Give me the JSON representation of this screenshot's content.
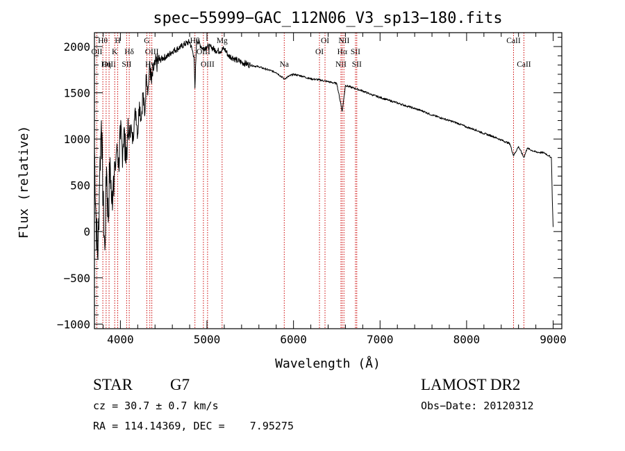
{
  "chart_data": {
    "type": "line",
    "title": "spec−55999−GAC_112N06_V3_sp13−180.fits",
    "xlabel": "Wavelength (Å)",
    "ylabel": "Flux (relative)",
    "xlim": [
      3700,
      9100
    ],
    "ylim": [
      -1050,
      2150
    ],
    "x_ticks": [
      4000,
      5000,
      6000,
      7000,
      8000,
      9000
    ],
    "x_tick_labels": [
      "4000",
      "5000",
      "6000",
      "7000",
      "8000",
      "9000"
    ],
    "y_ticks": [
      -1000,
      -500,
      0,
      500,
      1000,
      1500,
      2000
    ],
    "y_tick_labels": [
      "−1000",
      "−500",
      "0",
      "500",
      "1000",
      "1500",
      "2000"
    ],
    "grid": false,
    "series": [
      {
        "line_color": "#000000",
        "x": [
          3700,
          3720,
          3740,
          3760,
          3780,
          3800,
          3820,
          3840,
          3860,
          3880,
          3900,
          3920,
          3940,
          3960,
          3980,
          4000,
          4020,
          4040,
          4060,
          4080,
          4100,
          4120,
          4140,
          4160,
          4180,
          4200,
          4220,
          4240,
          4260,
          4280,
          4300,
          4320,
          4340,
          4360,
          4380,
          4400,
          4450,
          4500,
          4550,
          4600,
          4650,
          4700,
          4750,
          4800,
          4850,
          4861,
          4880,
          4900,
          4950,
          5000,
          5050,
          5100,
          5150,
          5200,
          5250,
          5300,
          5350,
          5400,
          5500,
          5600,
          5700,
          5800,
          5893,
          5950,
          6000,
          6100,
          6200,
          6300,
          6400,
          6500,
          6563,
          6600,
          6700,
          6800,
          6900,
          7000,
          7100,
          7200,
          7300,
          7400,
          7500,
          7600,
          7700,
          7800,
          7900,
          8000,
          8100,
          8200,
          8300,
          8400,
          8500,
          8542,
          8600,
          8662,
          8700,
          8800,
          8900,
          8950,
          8980,
          8990,
          9000
        ],
        "y": [
          900,
          100,
          -300,
          600,
          1200,
          300,
          -200,
          700,
          100,
          800,
          300,
          600,
          700,
          950,
          800,
          1000,
          900,
          1100,
          750,
          1050,
          1000,
          1150,
          950,
          1200,
          1300,
          1050,
          1400,
          1200,
          1500,
          1250,
          1700,
          1550,
          1800,
          1600,
          1750,
          1800,
          1850,
          1880,
          1900,
          1950,
          1970,
          2000,
          2030,
          2050,
          1900,
          1550,
          2080,
          2050,
          1980,
          2000,
          1990,
          1960,
          1950,
          1980,
          1900,
          1880,
          1850,
          1830,
          1800,
          1780,
          1750,
          1720,
          1650,
          1680,
          1700,
          1680,
          1650,
          1640,
          1620,
          1600,
          1300,
          1580,
          1550,
          1520,
          1480,
          1450,
          1420,
          1390,
          1360,
          1330,
          1300,
          1260,
          1230,
          1200,
          1170,
          1130,
          1100,
          1060,
          1030,
          990,
          950,
          820,
          920,
          800,
          900,
          860,
          850,
          820,
          800,
          350,
          50
        ]
      }
    ],
    "line_markers": [
      {
        "x": 3797,
        "labels": [
          "Hθ"
        ],
        "row": 0
      },
      {
        "x": 3727,
        "labels": [
          "OII"
        ],
        "row": 1
      },
      {
        "x": 3869,
        "labels": [
          "OIII"
        ],
        "row": 2
      },
      {
        "x": 3835,
        "labels": [
          "Hη"
        ],
        "row": 2
      },
      {
        "x": 3934,
        "labels": [
          "K"
        ],
        "row": 1
      },
      {
        "x": 3969,
        "labels": [
          "H"
        ],
        "row": 0
      },
      {
        "x": 4102,
        "labels": [
          "Hδ"
        ],
        "row": 1
      },
      {
        "x": 4072,
        "labels": [
          "SII"
        ],
        "row": 2
      },
      {
        "x": 4305,
        "labels": [
          "G"
        ],
        "row": 0
      },
      {
        "x": 4363,
        "labels": [
          "OIII"
        ],
        "row": 1
      },
      {
        "x": 4340,
        "labels": [
          "Hγ"
        ],
        "row": 2
      },
      {
        "x": 4861,
        "labels": [
          "Hβ"
        ],
        "row": 0
      },
      {
        "x": 4959,
        "labels": [
          "OIII"
        ],
        "row": 1
      },
      {
        "x": 5007,
        "labels": [
          "OIII"
        ],
        "row": 2
      },
      {
        "x": 5175,
        "labels": [
          "Mg"
        ],
        "row": 0
      },
      {
        "x": 5893,
        "labels": [
          "Na"
        ],
        "row": 2
      },
      {
        "x": 6300,
        "labels": [
          "OI"
        ],
        "row": 1
      },
      {
        "x": 6364,
        "labels": [
          "OI"
        ],
        "row": 0
      },
      {
        "x": 6548,
        "labels": [
          "NII"
        ],
        "row": 2
      },
      {
        "x": 6563,
        "labels": [
          "Hα"
        ],
        "row": 1
      },
      {
        "x": 6583,
        "labels": [
          "NII"
        ],
        "row": 0
      },
      {
        "x": 6716,
        "labels": [
          "SII"
        ],
        "row": 1
      },
      {
        "x": 6731,
        "labels": [
          "SII"
        ],
        "row": 2
      },
      {
        "x": 8542,
        "labels": [
          "CaII"
        ],
        "row": 0
      },
      {
        "x": 8662,
        "labels": [
          "CaII"
        ],
        "row": 2
      }
    ],
    "marker_color": "#cc0000"
  },
  "info": {
    "object_type": "STAR",
    "subclass": "G7",
    "survey": "LAMOST DR2",
    "cz": "cz = 30.7 ± 0.7 km/s",
    "obs_date": "Obs−Date: 20120312",
    "coords": "RA = 114.14369, DEC =    7.95275"
  }
}
